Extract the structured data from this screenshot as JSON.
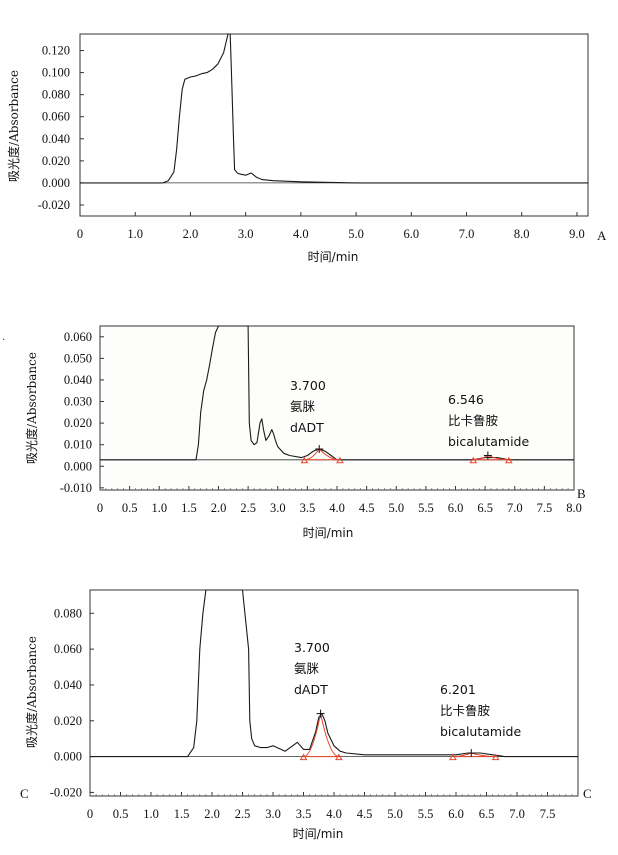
{
  "chart_data": [
    {
      "panel_label": "A",
      "type": "line",
      "xlabel": "时间/min",
      "ylabel": "吸光度/Absorbance",
      "xlim": [
        0,
        9.2
      ],
      "ylim": [
        -0.03,
        0.135
      ],
      "x_ticks": [
        "0",
        "1.0",
        "2.0",
        "3.0",
        "4.0",
        "5.0",
        "6.0",
        "7.0",
        "8.0",
        "9.0"
      ],
      "y_ticks": [
        "0.120",
        "0.100",
        "0.080",
        "0.060",
        "0.040",
        "0.020",
        "0.000",
        "-0.020"
      ],
      "line_color": "#1a1a1a",
      "series": [
        {
          "x": [
            0,
            1.5,
            1.6,
            1.7,
            1.75,
            1.8,
            1.85,
            1.9,
            2.0,
            2.1,
            2.2,
            2.3,
            2.4,
            2.5,
            2.6,
            2.68,
            2.72,
            2.75,
            2.78,
            2.8,
            2.85,
            2.9,
            3.0,
            3.05,
            3.1,
            3.15,
            3.2,
            3.3,
            3.5,
            4.0,
            5.0,
            6.0,
            7.0,
            8.0,
            9.2
          ],
          "y": [
            0.0,
            0.0,
            0.002,
            0.01,
            0.03,
            0.06,
            0.085,
            0.094,
            0.096,
            0.097,
            0.099,
            0.1,
            0.103,
            0.108,
            0.118,
            0.135,
            0.135,
            0.09,
            0.04,
            0.012,
            0.009,
            0.008,
            0.007,
            0.008,
            0.009,
            0.007,
            0.005,
            0.003,
            0.002,
            0.001,
            0.0,
            0.0,
            0.0,
            0.0,
            0.0
          ]
        }
      ]
    },
    {
      "panel_label": "B",
      "type": "line",
      "xlabel": "时间/min",
      "ylabel": "吸光度/Absorbance",
      "xlim": [
        0,
        8.0
      ],
      "ylim": [
        -0.011,
        0.065
      ],
      "x_ticks": [
        "0",
        "0.5",
        "1.0",
        "1.5",
        "2.0",
        "2.5",
        "3.0",
        "3.5",
        "4.0",
        "4.5",
        "5.0",
        "5.5",
        "6.0",
        "6.5",
        "7.0",
        "7.5",
        "8.0"
      ],
      "y_ticks": [
        "0.060",
        "0.050",
        "0.040",
        "0.030",
        "0.020",
        "0.010",
        "0.000",
        "-0.010"
      ],
      "line_color": "#1a1a1a",
      "highlight_color": "#e8452c",
      "series": [
        {
          "x": [
            0,
            0.9,
            1.25,
            1.4,
            1.62,
            1.66,
            1.7,
            1.75,
            1.8,
            1.85,
            1.9,
            1.95,
            2.0,
            2.1,
            2.5,
            2.52,
            2.55,
            2.6,
            2.65,
            2.7,
            2.73,
            2.76,
            2.8,
            2.85,
            2.9,
            2.93,
            2.96,
            3.0,
            3.1,
            3.2,
            3.4,
            3.5,
            3.6,
            3.7,
            3.8,
            3.9,
            4.0,
            4.1,
            4.5,
            5.0,
            5.5,
            6.0,
            6.3,
            6.5,
            6.7,
            6.9,
            7.5,
            8.0
          ],
          "y": [
            0.003,
            0.003,
            0.003,
            0.003,
            0.003,
            0.01,
            0.025,
            0.035,
            0.04,
            0.047,
            0.055,
            0.062,
            0.065,
            0.065,
            0.065,
            0.02,
            0.012,
            0.01,
            0.011,
            0.02,
            0.022,
            0.017,
            0.012,
            0.014,
            0.017,
            0.015,
            0.012,
            0.009,
            0.006,
            0.005,
            0.004,
            0.005,
            0.007,
            0.008,
            0.007,
            0.005,
            0.003,
            0.003,
            0.003,
            0.003,
            0.003,
            0.003,
            0.003,
            0.004,
            0.004,
            0.003,
            0.003,
            0.003
          ]
        }
      ],
      "peaks": [
        {
          "time": "3.700",
          "name_cn": "氨脒",
          "name_en": "dADT",
          "x": 3.7,
          "y": 0.008,
          "start": 3.45,
          "end": 4.05
        },
        {
          "time": "6.546",
          "name_cn": "比卡鲁胺",
          "name_en": "bicalutamide",
          "x": 6.546,
          "y": 0.005,
          "start": 6.3,
          "end": 6.9
        }
      ]
    },
    {
      "panel_label": "C",
      "type": "line",
      "xlabel": "时间/min",
      "ylabel": "吸光度/Absorbance",
      "xlim": [
        0,
        8.0
      ],
      "ylim": [
        -0.022,
        0.093
      ],
      "x_ticks": [
        "0",
        "0.5",
        "1.0",
        "1.5",
        "2.0",
        "2.5",
        "3.0",
        "3.5",
        "4.0",
        "4.5",
        "5.0",
        "5.5",
        "6.0",
        "6.5",
        "7.0",
        "7.5"
      ],
      "y_ticks": [
        "0.080",
        "0.060",
        "0.040",
        "0.020",
        "0.000",
        "-0.020"
      ],
      "line_color": "#1a1a1a",
      "highlight_color": "#e8452c",
      "series": [
        {
          "x": [
            0,
            1.6,
            1.7,
            1.75,
            1.8,
            1.85,
            1.9,
            2.0,
            2.5,
            2.6,
            2.62,
            2.65,
            2.7,
            2.8,
            2.9,
            3.0,
            3.2,
            3.4,
            3.5,
            3.6,
            3.7,
            3.75,
            3.8,
            3.85,
            3.9,
            4.0,
            4.1,
            4.2,
            4.5,
            5.0,
            5.5,
            6.0,
            6.2,
            6.4,
            6.6,
            6.8,
            7.0,
            8.0
          ],
          "y": [
            0.0,
            0.0,
            0.005,
            0.02,
            0.06,
            0.08,
            0.093,
            0.093,
            0.093,
            0.06,
            0.02,
            0.01,
            0.006,
            0.005,
            0.005,
            0.006,
            0.003,
            0.008,
            0.004,
            0.004,
            0.014,
            0.022,
            0.024,
            0.02,
            0.013,
            0.006,
            0.003,
            0.002,
            0.001,
            0.001,
            0.001,
            0.001,
            0.002,
            0.002,
            0.001,
            0.0,
            0.0,
            0.0
          ]
        }
      ],
      "peaks": [
        {
          "time": "3.700",
          "name_cn": "氨脒",
          "name_en": "dADT",
          "x": 3.78,
          "y": 0.024,
          "start": 3.5,
          "end": 4.08
        },
        {
          "time": "6.201",
          "name_cn": "比卡鲁胺",
          "name_en": "bicalutamide",
          "x": 6.25,
          "y": 0.002,
          "start": 5.95,
          "end": 6.65
        }
      ]
    }
  ],
  "panel_side_marks": {
    "C_left": "C",
    "B_left_dot": "."
  }
}
